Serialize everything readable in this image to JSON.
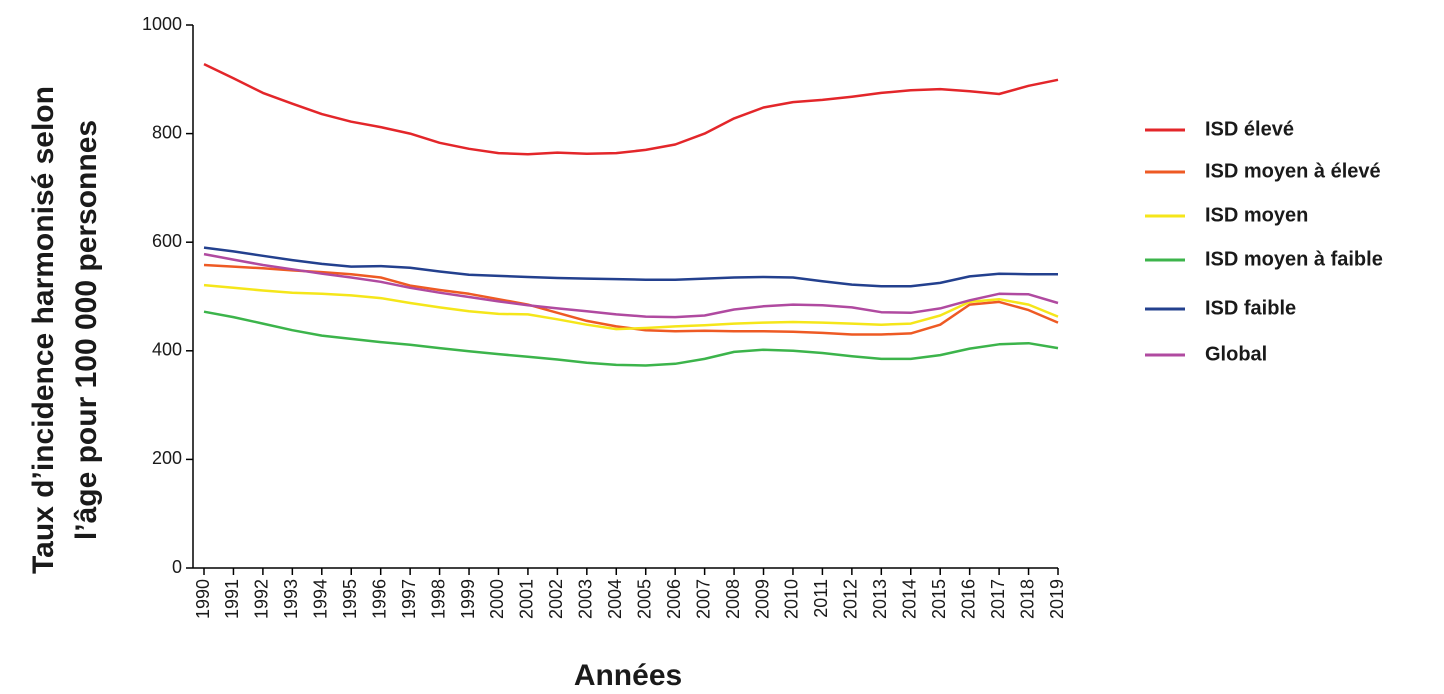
{
  "chart_data": {
    "type": "line",
    "y_label": [
      "Taux d’incidence harmonisé selon",
      "l’âge pour 100 000 personnes"
    ],
    "x_label": "Années",
    "categories": [
      1990,
      1991,
      1992,
      1993,
      1994,
      1995,
      1996,
      1997,
      1998,
      1999,
      2000,
      2001,
      2002,
      2003,
      2004,
      2005,
      2006,
      2007,
      2008,
      2009,
      2010,
      2011,
      2012,
      2013,
      2014,
      2015,
      2016,
      2017,
      2018,
      2019
    ],
    "ylim": [
      0,
      1000
    ],
    "yticks": [
      0,
      200,
      400,
      600,
      800,
      1000
    ],
    "grid": false,
    "legend": "right",
    "series": [
      {
        "name": "ISD élevé",
        "color": "#e3262a",
        "values": [
          928,
          902,
          875,
          855,
          836,
          822,
          812,
          800,
          783,
          772,
          764,
          762,
          765,
          763,
          764,
          770,
          780,
          800,
          828,
          848,
          858,
          862,
          868,
          875,
          880,
          882,
          878,
          873,
          888,
          899
        ]
      },
      {
        "name": "ISD moyen à élevé",
        "color": "#ee5a24",
        "values": [
          558,
          555,
          552,
          548,
          545,
          541,
          535,
          520,
          512,
          505,
          495,
          485,
          470,
          455,
          445,
          438,
          436,
          437,
          436,
          436,
          435,
          433,
          430,
          430,
          432,
          448,
          485,
          490,
          475,
          452
        ]
      },
      {
        "name": "ISD moyen",
        "color": "#f5e61a",
        "values": [
          521,
          516,
          511,
          507,
          505,
          502,
          497,
          488,
          480,
          473,
          468,
          467,
          458,
          448,
          440,
          442,
          445,
          447,
          450,
          452,
          453,
          452,
          450,
          448,
          450,
          465,
          490,
          495,
          485,
          463
        ]
      },
      {
        "name": "ISD moyen à faible",
        "color": "#3cb44b",
        "values": [
          472,
          462,
          450,
          438,
          428,
          422,
          416,
          411,
          405,
          399,
          394,
          389,
          384,
          378,
          374,
          373,
          376,
          385,
          398,
          402,
          400,
          396,
          390,
          385,
          385,
          392,
          404,
          412,
          414,
          405
        ]
      },
      {
        "name": "ISD faible",
        "color": "#23408e",
        "values": [
          590,
          583,
          575,
          567,
          560,
          555,
          556,
          553,
          546,
          540,
          538,
          536,
          534,
          533,
          532,
          531,
          531,
          533,
          535,
          536,
          535,
          528,
          522,
          519,
          519,
          525,
          537,
          542,
          541,
          541
        ]
      },
      {
        "name": "Global",
        "color": "#b04aa0",
        "values": [
          578,
          568,
          558,
          550,
          542,
          535,
          527,
          516,
          507,
          499,
          491,
          484,
          478,
          473,
          467,
          463,
          462,
          465,
          476,
          482,
          485,
          484,
          480,
          471,
          470,
          478,
          493,
          505,
          504,
          488
        ]
      }
    ]
  }
}
